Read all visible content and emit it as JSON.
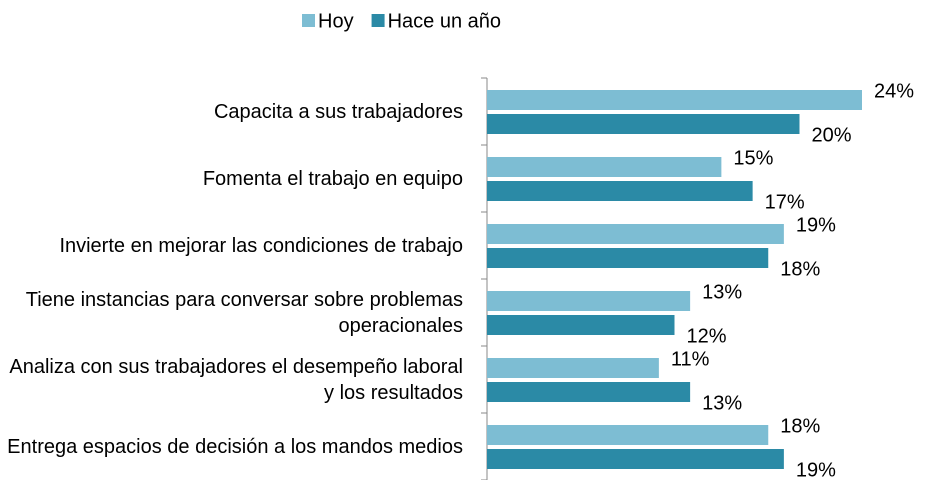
{
  "chart_data": {
    "type": "hbar",
    "categories": [
      "Capacita a sus trabajadores",
      "Fomenta el trabajo en equipo",
      "Invierte en mejorar las condiciones de trabajo",
      "Tiene instancias para conversar sobre problemas operacionales",
      "Analiza con sus trabajadores el desempeño laboral y los resultados",
      "Entrega espacios de decisión a los mandos medios"
    ],
    "series": [
      {
        "name": "Hoy",
        "color": "#7dbdd3",
        "values": [
          24,
          15,
          19,
          13,
          11,
          18
        ],
        "value_labels": [
          "24%",
          "15%",
          "19%",
          "13%",
          "11%",
          "18%"
        ]
      },
      {
        "name": "Hace un año",
        "color": "#2b8aa6",
        "values": [
          20,
          17,
          18,
          12,
          13,
          19
        ],
        "value_labels": [
          "20%",
          "17%",
          "18%",
          "12%",
          "13%",
          "19%"
        ]
      }
    ],
    "legend": "top"
  }
}
